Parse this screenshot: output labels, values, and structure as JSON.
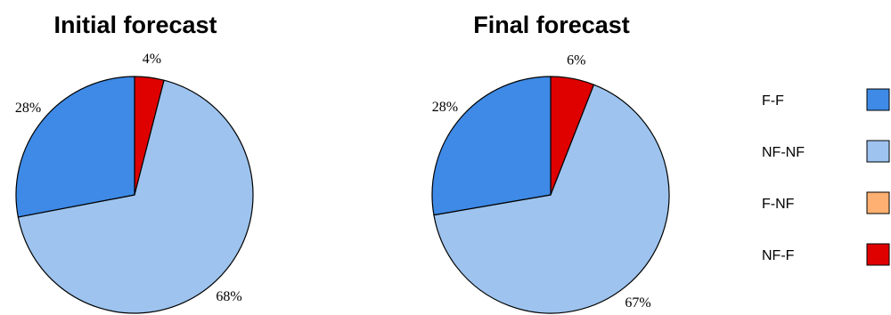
{
  "chart_data": [
    {
      "type": "pie",
      "title": "Initial forecast",
      "slices": [
        {
          "category": "NF-F",
          "value": 4,
          "label": "4%"
        },
        {
          "category": "NF-NF",
          "value": 68,
          "label": "68%"
        },
        {
          "category": "F-F",
          "value": 28,
          "label": "28%"
        }
      ]
    },
    {
      "type": "pie",
      "title": "Final forecast",
      "slices": [
        {
          "category": "NF-F",
          "value": 6,
          "label": "6%"
        },
        {
          "category": "NF-NF",
          "value": 67,
          "label": "67%"
        },
        {
          "category": "F-F",
          "value": 28,
          "label": "28%"
        }
      ]
    }
  ],
  "legend": {
    "placement": "right",
    "items": [
      {
        "label": "F-F",
        "color": "#3e8ae6"
      },
      {
        "label": "NF-NF",
        "color": "#9dc3ee"
      },
      {
        "label": "F-NF",
        "color": "#fdb071"
      },
      {
        "label": "NF-F",
        "color": "#df0000"
      }
    ]
  }
}
